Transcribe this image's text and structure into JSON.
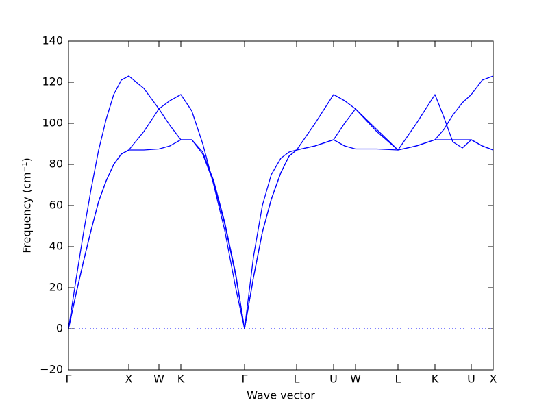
{
  "chart_data": {
    "type": "line",
    "xlabel": "Wave vector",
    "ylabel": "Frequency (cm⁻¹)",
    "xlim": [
      0,
      620
    ],
    "xticks": [
      {
        "value": 0,
        "label": "Γ"
      },
      {
        "value": 88,
        "label": "X"
      },
      {
        "value": 132,
        "label": "W"
      },
      {
        "value": 164,
        "label": "K"
      },
      {
        "value": 257,
        "label": "Γ"
      },
      {
        "value": 333,
        "label": "L"
      },
      {
        "value": 387,
        "label": "U"
      },
      {
        "value": 419,
        "label": "W"
      },
      {
        "value": 481,
        "label": "L"
      },
      {
        "value": 535,
        "label": "K"
      },
      {
        "value": 588,
        "label": "U"
      },
      {
        "value": 620,
        "label": "X"
      }
    ],
    "ylim": [
      -20,
      140
    ],
    "yticks": [
      {
        "value": -20,
        "label": "−20"
      },
      0,
      20,
      40,
      60,
      80,
      100,
      120,
      140
    ],
    "zero_line": true,
    "x": [
      0,
      11,
      22,
      33,
      44,
      55,
      66,
      77,
      88,
      110,
      132,
      148,
      164,
      180,
      196,
      212,
      228,
      244,
      257,
      270,
      283,
      296,
      310,
      322,
      333,
      360,
      387,
      403,
      419,
      450,
      481,
      508,
      535,
      548,
      561,
      575,
      588,
      604,
      620
    ],
    "series": [
      {
        "color": "#0000ff",
        "values": [
          0,
          24,
          47,
          68,
          87,
          102,
          114,
          121,
          123,
          117,
          107,
          111,
          114,
          106,
          90,
          70,
          48,
          20,
          0,
          35,
          60,
          75,
          83,
          86,
          87,
          100,
          114,
          111,
          107,
          96,
          87,
          100,
          114,
          103,
          91,
          88,
          92,
          89,
          87
        ]
      },
      {
        "color": "#0000ff",
        "values": [
          0,
          17,
          33,
          48,
          62,
          72,
          80,
          85,
          87,
          96,
          107,
          99,
          92,
          92,
          86,
          72,
          52,
          27,
          0,
          25,
          47,
          63,
          76,
          84,
          87,
          89,
          92,
          100,
          107,
          97,
          87,
          89,
          92,
          97,
          104,
          110,
          114,
          121,
          123
        ]
      },
      {
        "color": "#0000ff",
        "values": [
          0,
          17,
          33,
          48,
          62,
          72,
          80,
          85,
          87,
          87,
          87.5,
          89,
          92,
          92,
          85,
          71,
          51,
          26,
          0,
          25,
          47,
          63,
          76,
          84,
          87,
          89,
          92,
          89,
          87.5,
          87.5,
          87,
          89,
          92,
          92,
          92,
          92,
          92,
          89,
          87
        ]
      }
    ]
  }
}
